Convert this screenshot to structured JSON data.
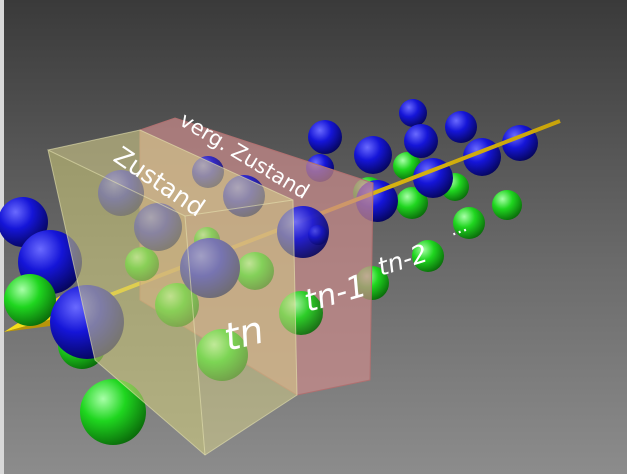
{
  "scene": {
    "background_top": "#3c3c3c",
    "background_bottom": "#8a8a8a",
    "sphere_colors": {
      "blue": "#1a1ad6",
      "green": "#22d622"
    },
    "box_colors": {
      "front": "#d9d48a",
      "back": "#c98a8a"
    },
    "axis_color": "#e6c60a",
    "labels": {
      "zustand": "Zustand",
      "verg_zustand": "verg. Zustand",
      "tn": "tn",
      "tn1": "tn-1",
      "tn2": "tn-2",
      "dots": "..."
    }
  }
}
